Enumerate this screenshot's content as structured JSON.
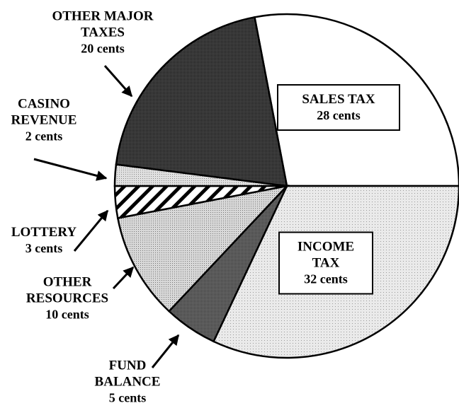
{
  "chart_data": {
    "type": "pie",
    "categories": [
      "SALES TAX",
      "INCOME TAX",
      "FUND BALANCE",
      "OTHER RESOURCES",
      "LOTTERY",
      "CASINO REVENUE",
      "OTHER MAJOR TAXES"
    ],
    "values": [
      28,
      32,
      5,
      10,
      3,
      2,
      20
    ],
    "value_labels": [
      "28 cents",
      "32 cents",
      "5 cents",
      "10 cents",
      "3 cents",
      "2 cents",
      "20 cents"
    ]
  }
}
